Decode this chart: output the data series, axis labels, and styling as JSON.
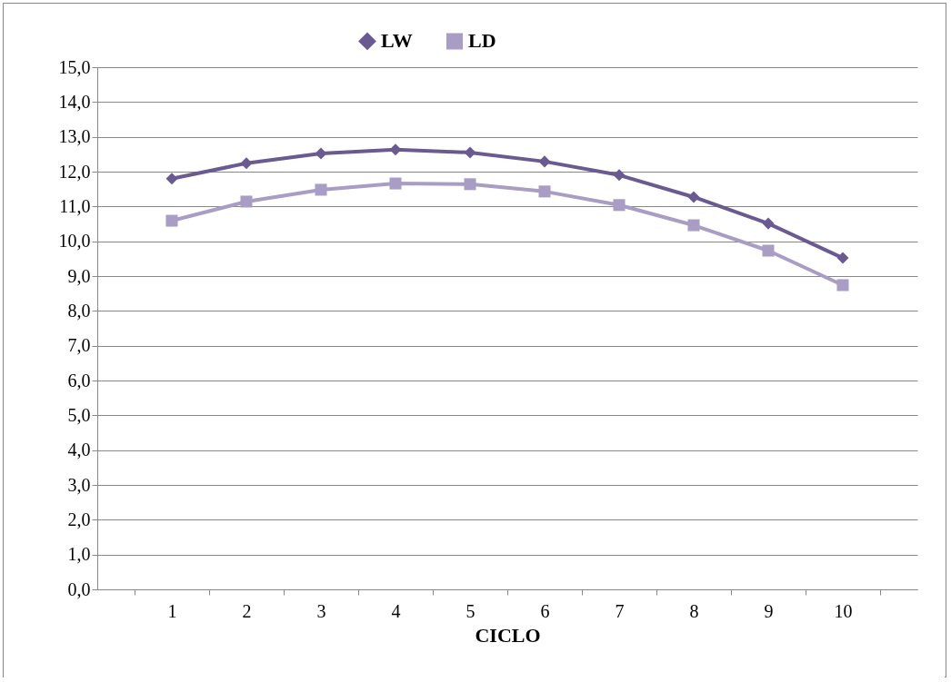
{
  "chart_data": {
    "type": "line",
    "xlabel": "CICLO",
    "categories": [
      "1",
      "2",
      "3",
      "4",
      "5",
      "6",
      "7",
      "8",
      "9",
      "10"
    ],
    "series": [
      {
        "name": "LW",
        "color": "#6b5a92",
        "marker": "diamond",
        "values": [
          11.8,
          12.24,
          12.52,
          12.63,
          12.55,
          12.29,
          11.9,
          11.27,
          10.51,
          9.52
        ]
      },
      {
        "name": "LD",
        "color": "#a99cc5",
        "marker": "square",
        "values": [
          10.59,
          11.14,
          11.48,
          11.66,
          11.64,
          11.43,
          11.04,
          10.46,
          9.73,
          8.74
        ]
      }
    ],
    "ylim": [
      0,
      15
    ],
    "yticks": [
      {
        "value": 0,
        "label": "0,0"
      },
      {
        "value": 1,
        "label": "1,0"
      },
      {
        "value": 2,
        "label": "2,0"
      },
      {
        "value": 3,
        "label": "3,0"
      },
      {
        "value": 4,
        "label": "4,0"
      },
      {
        "value": 5,
        "label": "5,0"
      },
      {
        "value": 6,
        "label": "6,0"
      },
      {
        "value": 7,
        "label": "7,0"
      },
      {
        "value": 8,
        "label": "8,0"
      },
      {
        "value": 9,
        "label": "9,0"
      },
      {
        "value": 10,
        "label": "10,0"
      },
      {
        "value": 11,
        "label": "11,0"
      },
      {
        "value": 12,
        "label": "12,0"
      },
      {
        "value": 13,
        "label": "13,0"
      },
      {
        "value": 14,
        "label": "14,0"
      },
      {
        "value": 15,
        "label": "15,0"
      }
    ],
    "grid": "y",
    "legend": "top",
    "line_style": "solid"
  }
}
